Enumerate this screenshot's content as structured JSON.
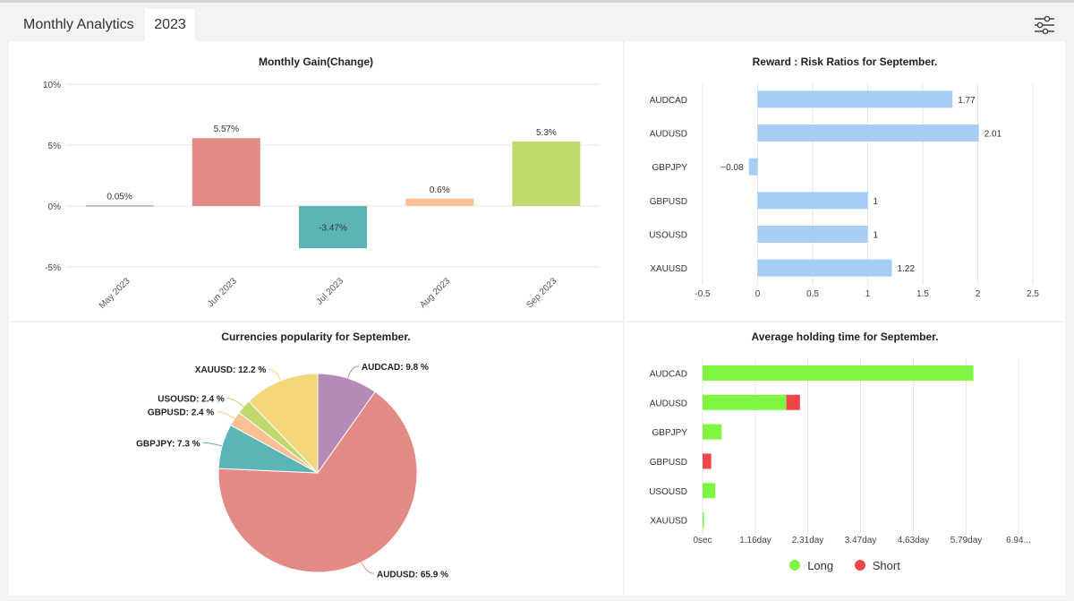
{
  "header": {
    "title": "Monthly Analytics",
    "year_tab": "2023",
    "filter_icon": "sliders-icon"
  },
  "chart_data": [
    {
      "id": "monthly_gain",
      "type": "bar",
      "title": "Monthly Gain(Change)",
      "categories": [
        "May 2023",
        "Jun 2023",
        "Jul 2023",
        "Aug 2023",
        "Sep 2023"
      ],
      "values": [
        0.05,
        5.57,
        -3.47,
        0.6,
        5.3
      ],
      "value_labels": [
        "0.05%",
        "5.57%",
        "-3.47%",
        "0.6%",
        "5.3%"
      ],
      "colors": [
        "#b48ab7",
        "#e38a87",
        "#5bb5b5",
        "#fcbf96",
        "#bfd96d"
      ],
      "ylim": [
        -5,
        10
      ],
      "yticks": [
        10,
        5,
        0,
        -5
      ],
      "ytick_labels": [
        "10%",
        "5%",
        "0%",
        "-5%"
      ],
      "grid": true
    },
    {
      "id": "reward_risk",
      "type": "bar",
      "orientation": "horizontal",
      "title": "Reward : Risk Ratios for September.",
      "categories": [
        "AUDCAD",
        "AUDUSD",
        "GBPJPY",
        "GBPUSD",
        "USOUSD",
        "XAUUSD"
      ],
      "values": [
        1.77,
        2.01,
        -0.08,
        1,
        1,
        1.22
      ],
      "value_labels": [
        "1.77",
        "2.01",
        "−0.08",
        "1",
        "1",
        "1.22"
      ],
      "color": "#a6cef4",
      "xlim": [
        -0.5,
        2.5
      ],
      "xticks": [
        -0.5,
        0,
        0.5,
        1,
        1.5,
        2,
        2.5
      ],
      "xtick_labels": [
        "-0.5",
        "0",
        "0.5",
        "1",
        "1.5",
        "2",
        "2.5"
      ],
      "grid": true
    },
    {
      "id": "currency_popularity",
      "type": "pie",
      "title": "Currencies popularity for September.",
      "slices": [
        {
          "label": "AUDCAD",
          "value": 9.8,
          "text": "AUDCAD: 9.8 %",
          "color": "#b48ab7"
        },
        {
          "label": "AUDUSD",
          "value": 65.9,
          "text": "AUDUSD: 65.9 %",
          "color": "#e38a87"
        },
        {
          "label": "GBPJPY",
          "value": 7.3,
          "text": "GBPJPY: 7.3 %",
          "color": "#5bb5b5"
        },
        {
          "label": "GBPUSD",
          "value": 2.4,
          "text": "GBPUSD: 2.4 %",
          "color": "#fcbf96"
        },
        {
          "label": "USOUSD",
          "value": 2.4,
          "text": "USOUSD: 2.4 %",
          "color": "#bfd96d"
        },
        {
          "label": "XAUUSD",
          "value": 12.2,
          "text": "XAUUSD: 12.2 %",
          "color": "#f5d77a"
        }
      ]
    },
    {
      "id": "holding_time",
      "type": "bar",
      "orientation": "horizontal",
      "stacked": true,
      "title": "Average holding time for September.",
      "categories": [
        "AUDCAD",
        "AUDUSD",
        "GBPJPY",
        "GBPUSD",
        "USOUSD",
        "XAUUSD"
      ],
      "unit": "day",
      "series": [
        {
          "name": "Long",
          "color": "#80f542",
          "values": [
            5.95,
            1.84,
            0.42,
            0,
            0.28,
            0.03
          ]
        },
        {
          "name": "Short",
          "color": "#f2454a",
          "values": [
            0,
            0.3,
            0,
            0.19,
            0,
            0
          ]
        }
      ],
      "xlim": [
        0,
        6.94
      ],
      "xticks": [
        0,
        1.16,
        2.31,
        3.47,
        4.63,
        5.79,
        6.94
      ],
      "xtick_labels": [
        "0sec",
        "1.16day",
        "2.31day",
        "3.47day",
        "4.63day",
        "5.79day",
        "6.94..."
      ],
      "grid": true,
      "legend": "bottom"
    }
  ]
}
